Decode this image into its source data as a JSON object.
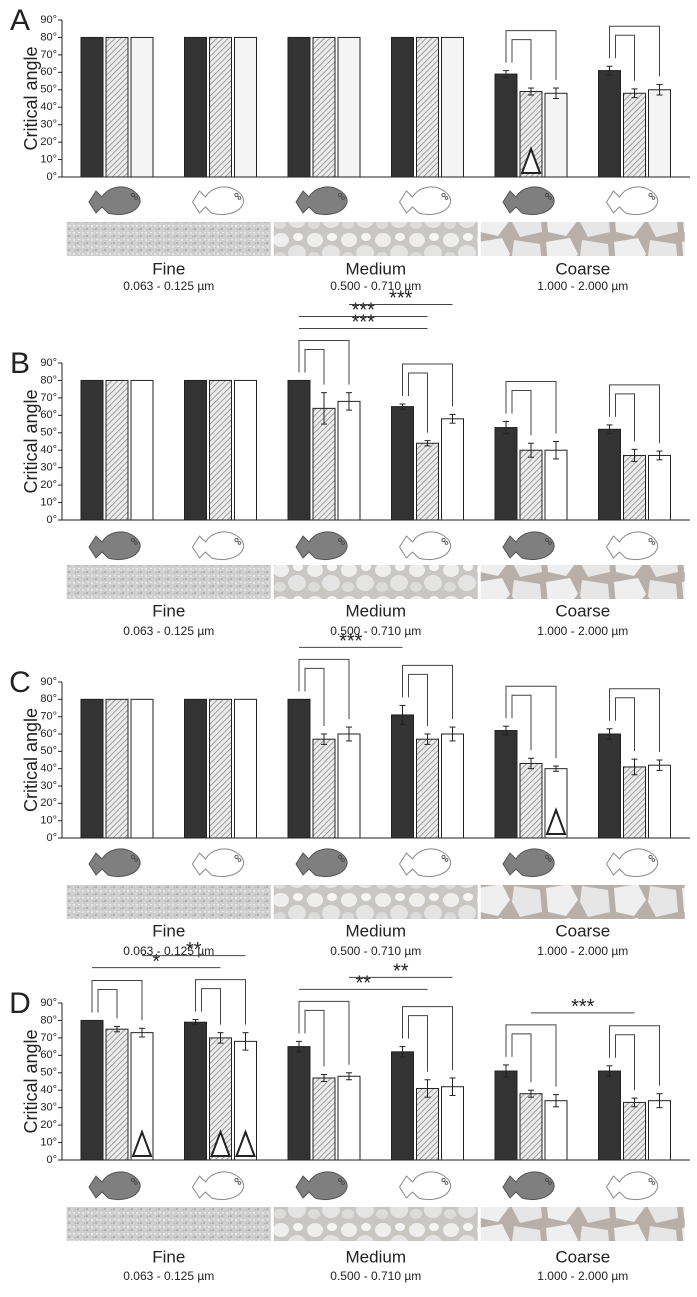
{
  "chart_data": [
    {
      "type": "bar",
      "label": "A",
      "ylabel": "Critical angle",
      "categories": [
        null,
        null,
        null,
        null,
        null,
        null
      ],
      "ylim": [
        0,
        90
      ],
      "yticks": [
        {
          "value": 0,
          "label": "0°"
        },
        {
          "value": 10,
          "label": "10°"
        },
        {
          "value": 20,
          "label": "20°"
        },
        {
          "value": 30,
          "label": "30°"
        },
        {
          "value": 40,
          "label": "40°"
        },
        {
          "value": 50,
          "label": "50°"
        },
        {
          "value": 60,
          "label": "60°"
        },
        {
          "value": 70,
          "label": "70°"
        },
        {
          "value": 80,
          "label": "80°"
        },
        {
          "value": 90,
          "label": "90°"
        }
      ],
      "series": [
        {
          "color": "#333333",
          "values": [
            80,
            80,
            80,
            80,
            59,
            61
          ],
          "errors": [
            0,
            0,
            0,
            0,
            2,
            2.5
          ]
        },
        {
          "color": "#a8a8a8",
          "pattern": "hatched",
          "values": [
            80,
            80,
            80,
            80,
            49,
            48
          ],
          "errors": [
            0,
            0,
            0,
            0,
            2,
            2.5
          ]
        },
        {
          "color": "#f4f4f4",
          "values": [
            80,
            80,
            80,
            80,
            48,
            50
          ],
          "errors": [
            0,
            0,
            0,
            0,
            3,
            3
          ]
        }
      ],
      "bracket_groups": [
        4,
        5
      ],
      "triangles": [
        {
          "group": 4,
          "series": 1
        }
      ],
      "significance": [],
      "sediments": [
        {
          "name": "Fine",
          "range": "0.063 - 0.125 µm"
        },
        {
          "name": "Medium",
          "range": "0.500 - 0.710 µm"
        },
        {
          "name": "Coarse",
          "range": "1.000 - 2.000 µm"
        }
      ]
    },
    {
      "type": "bar",
      "label": "B",
      "ylabel": "Critical angle",
      "categories": [
        null,
        null,
        null,
        null,
        null,
        null
      ],
      "ylim": [
        0,
        90
      ],
      "yticks": [
        {
          "value": 0,
          "label": "0°"
        },
        {
          "value": 10,
          "label": "10°"
        },
        {
          "value": 20,
          "label": "20°"
        },
        {
          "value": 30,
          "label": "30°"
        },
        {
          "value": 40,
          "label": "40°"
        },
        {
          "value": 50,
          "label": "50°"
        },
        {
          "value": 60,
          "label": "60°"
        },
        {
          "value": 70,
          "label": "70°"
        },
        {
          "value": 80,
          "label": "80°"
        },
        {
          "value": 90,
          "label": "90°"
        }
      ],
      "series": [
        {
          "color": "#333333",
          "values": [
            80,
            80,
            80,
            65,
            53,
            52
          ],
          "errors": [
            0,
            0,
            0,
            1.5,
            3.5,
            2.5
          ]
        },
        {
          "color": "#a8a8a8",
          "pattern": "hatched",
          "values": [
            80,
            80,
            64,
            44,
            40,
            37
          ],
          "errors": [
            0,
            0,
            9,
            1.5,
            4,
            3.5
          ]
        },
        {
          "color": "#ffffff",
          "values": [
            80,
            80,
            68,
            58,
            40,
            37
          ],
          "errors": [
            0,
            0,
            5,
            2.5,
            5,
            2.5
          ]
        }
      ],
      "bracket_groups": [
        2,
        3,
        4,
        5
      ],
      "triangles": [],
      "significance": [
        {
          "label": "***",
          "from": [
            2,
            0
          ],
          "to": [
            3,
            1
          ]
        },
        {
          "label": "***",
          "from": [
            2,
            0
          ],
          "to": [
            3,
            1
          ]
        },
        {
          "label": "***",
          "from": [
            2,
            2
          ],
          "to": [
            3,
            2
          ]
        }
      ],
      "sediments": [
        {
          "name": "Fine",
          "range": "0.063 - 0.125 µm"
        },
        {
          "name": "Medium",
          "range": "0.500 - 0.710 µm"
        },
        {
          "name": "Coarse",
          "range": "1.000 - 2.000 µm"
        }
      ]
    },
    {
      "type": "bar",
      "label": "C",
      "ylabel": "Critical angle",
      "categories": [
        null,
        null,
        null,
        null,
        null,
        null
      ],
      "ylim": [
        0,
        90
      ],
      "yticks": [
        {
          "value": 0,
          "label": "0°"
        },
        {
          "value": 10,
          "label": "10°"
        },
        {
          "value": 20,
          "label": "20°"
        },
        {
          "value": 30,
          "label": "30°"
        },
        {
          "value": 40,
          "label": "40°"
        },
        {
          "value": 50,
          "label": "50°"
        },
        {
          "value": 60,
          "label": "60°"
        },
        {
          "value": 70,
          "label": "70°"
        },
        {
          "value": 80,
          "label": "80°"
        },
        {
          "value": 90,
          "label": "90°"
        }
      ],
      "series": [
        {
          "color": "#333333",
          "values": [
            80,
            80,
            80,
            71,
            62,
            60
          ],
          "errors": [
            0,
            0,
            0,
            5.5,
            2.5,
            3
          ]
        },
        {
          "color": "#a8a8a8",
          "pattern": "hatched",
          "values": [
            80,
            80,
            57,
            57,
            43,
            41
          ],
          "errors": [
            0,
            0,
            3,
            3,
            3,
            4.5
          ]
        },
        {
          "color": "#ffffff",
          "values": [
            80,
            80,
            60,
            60,
            40,
            42
          ],
          "errors": [
            0,
            0,
            4,
            4,
            1.5,
            3
          ]
        }
      ],
      "bracket_groups": [
        2,
        3,
        4,
        5
      ],
      "triangles": [
        {
          "group": 4,
          "series": 2
        }
      ],
      "significance": [
        {
          "label": "***",
          "from": [
            2,
            0
          ],
          "to": [
            3,
            0
          ]
        }
      ],
      "sediments": [
        {
          "name": "Fine",
          "range": "0.063 - 0.125 µm"
        },
        {
          "name": "Medium",
          "range": "0.500 - 0.710 µm"
        },
        {
          "name": "Coarse",
          "range": "1.000 - 2.000 µm"
        }
      ]
    },
    {
      "type": "bar",
      "label": "D",
      "ylabel": "Critical angle",
      "categories": [
        null,
        null,
        null,
        null,
        null,
        null
      ],
      "ylim": [
        0,
        90
      ],
      "yticks": [
        {
          "value": 0,
          "label": "0°"
        },
        {
          "value": 10,
          "label": "10°"
        },
        {
          "value": 20,
          "label": "20°"
        },
        {
          "value": 30,
          "label": "30°"
        },
        {
          "value": 40,
          "label": "40°"
        },
        {
          "value": 50,
          "label": "50°"
        },
        {
          "value": 60,
          "label": "60°"
        },
        {
          "value": 70,
          "label": "70°"
        },
        {
          "value": 80,
          "label": "80°"
        },
        {
          "value": 90,
          "label": "90°"
        }
      ],
      "series": [
        {
          "color": "#333333",
          "values": [
            80,
            79,
            65,
            62,
            51,
            51
          ],
          "errors": [
            0,
            1.5,
            3,
            3,
            3.5,
            3
          ]
        },
        {
          "color": "#a8a8a8",
          "pattern": "hatched",
          "values": [
            75,
            70,
            47,
            41,
            38,
            33
          ],
          "errors": [
            1.5,
            3,
            2,
            5,
            2,
            2.5
          ]
        },
        {
          "color": "#ffffff",
          "values": [
            73,
            68,
            48,
            42,
            34,
            34
          ],
          "errors": [
            2.5,
            5,
            2,
            5,
            3.5,
            4
          ]
        }
      ],
      "bracket_groups": [
        0,
        1,
        2,
        3,
        4,
        5
      ],
      "triangles": [
        {
          "group": 0,
          "series": 2
        },
        {
          "group": 1,
          "series": 1
        },
        {
          "group": 1,
          "series": 2
        }
      ],
      "significance": [
        {
          "label": "*",
          "from": [
            0,
            0
          ],
          "to": [
            1,
            1
          ]
        },
        {
          "label": "**",
          "from": [
            0,
            2
          ],
          "to": [
            1,
            2
          ]
        },
        {
          "label": "**",
          "from": [
            2,
            0
          ],
          "to": [
            3,
            1
          ]
        },
        {
          "label": "**",
          "from": [
            2,
            2
          ],
          "to": [
            3,
            2
          ]
        },
        {
          "label": "***",
          "from": [
            4,
            1
          ],
          "to": [
            5,
            1
          ]
        }
      ],
      "sediments": [
        {
          "name": "Fine",
          "range": "0.063 - 0.125 µm"
        },
        {
          "name": "Medium",
          "range": "0.500 - 0.710 µm"
        },
        {
          "name": "Coarse",
          "range": "1.000 - 2.000 µm"
        }
      ]
    }
  ]
}
